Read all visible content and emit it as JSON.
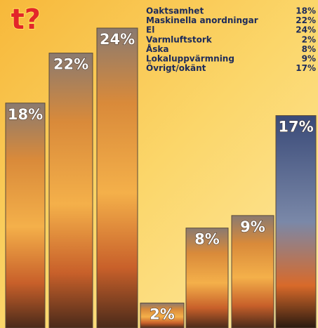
{
  "chart_data": {
    "type": "bar",
    "title": "t?",
    "categories": [
      "Oaktsamhet",
      "Maskinella anordningar",
      "El",
      "Varmluftstork",
      "Åska",
      "Lokaluppvärmning",
      "Övrigt/okänt"
    ],
    "values": [
      18,
      22,
      24,
      2,
      8,
      9,
      17
    ],
    "value_labels": [
      "18%",
      "22%",
      "24%",
      "2%",
      "8%",
      "9%",
      "17%"
    ]
  }
}
